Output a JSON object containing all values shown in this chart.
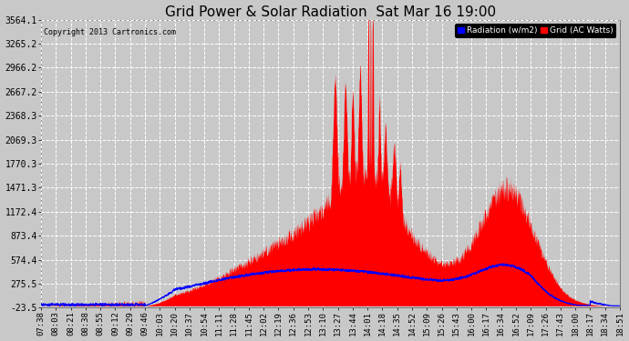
{
  "title": "Grid Power & Solar Radiation  Sat Mar 16 19:00",
  "copyright": "Copyright 2013 Cartronics.com",
  "legend_labels": [
    "Radiation (w/m2)",
    "Grid (AC Watts)"
  ],
  "legend_colors": [
    "#0000ff",
    "#ff0000"
  ],
  "yticks": [
    -23.5,
    275.5,
    574.4,
    873.4,
    1172.4,
    1471.3,
    1770.3,
    2069.3,
    2368.3,
    2667.2,
    2966.2,
    3265.2,
    3564.1
  ],
  "ylim": [
    -23.5,
    3564.1
  ],
  "background_color": "#c8c8c8",
  "plot_bg_color": "#c8c8c8",
  "grid_color": "#ffffff",
  "red_fill_color": "#ff0000",
  "blue_line_color": "#0000ff",
  "title_fontsize": 11,
  "xtick_fontsize": 6.5,
  "ytick_fontsize": 7,
  "xtick_labels": [
    "07:38",
    "08:03",
    "08:21",
    "08:38",
    "08:55",
    "09:12",
    "09:29",
    "09:46",
    "10:03",
    "10:20",
    "10:37",
    "10:54",
    "11:11",
    "11:28",
    "11:45",
    "12:02",
    "12:19",
    "12:36",
    "12:53",
    "13:10",
    "13:27",
    "13:44",
    "14:01",
    "14:18",
    "14:35",
    "14:52",
    "15:09",
    "15:26",
    "15:43",
    "16:00",
    "16:17",
    "16:34",
    "16:52",
    "17:09",
    "17:26",
    "17:43",
    "18:00",
    "18:17",
    "18:34",
    "18:51"
  ],
  "n_points": 2000
}
